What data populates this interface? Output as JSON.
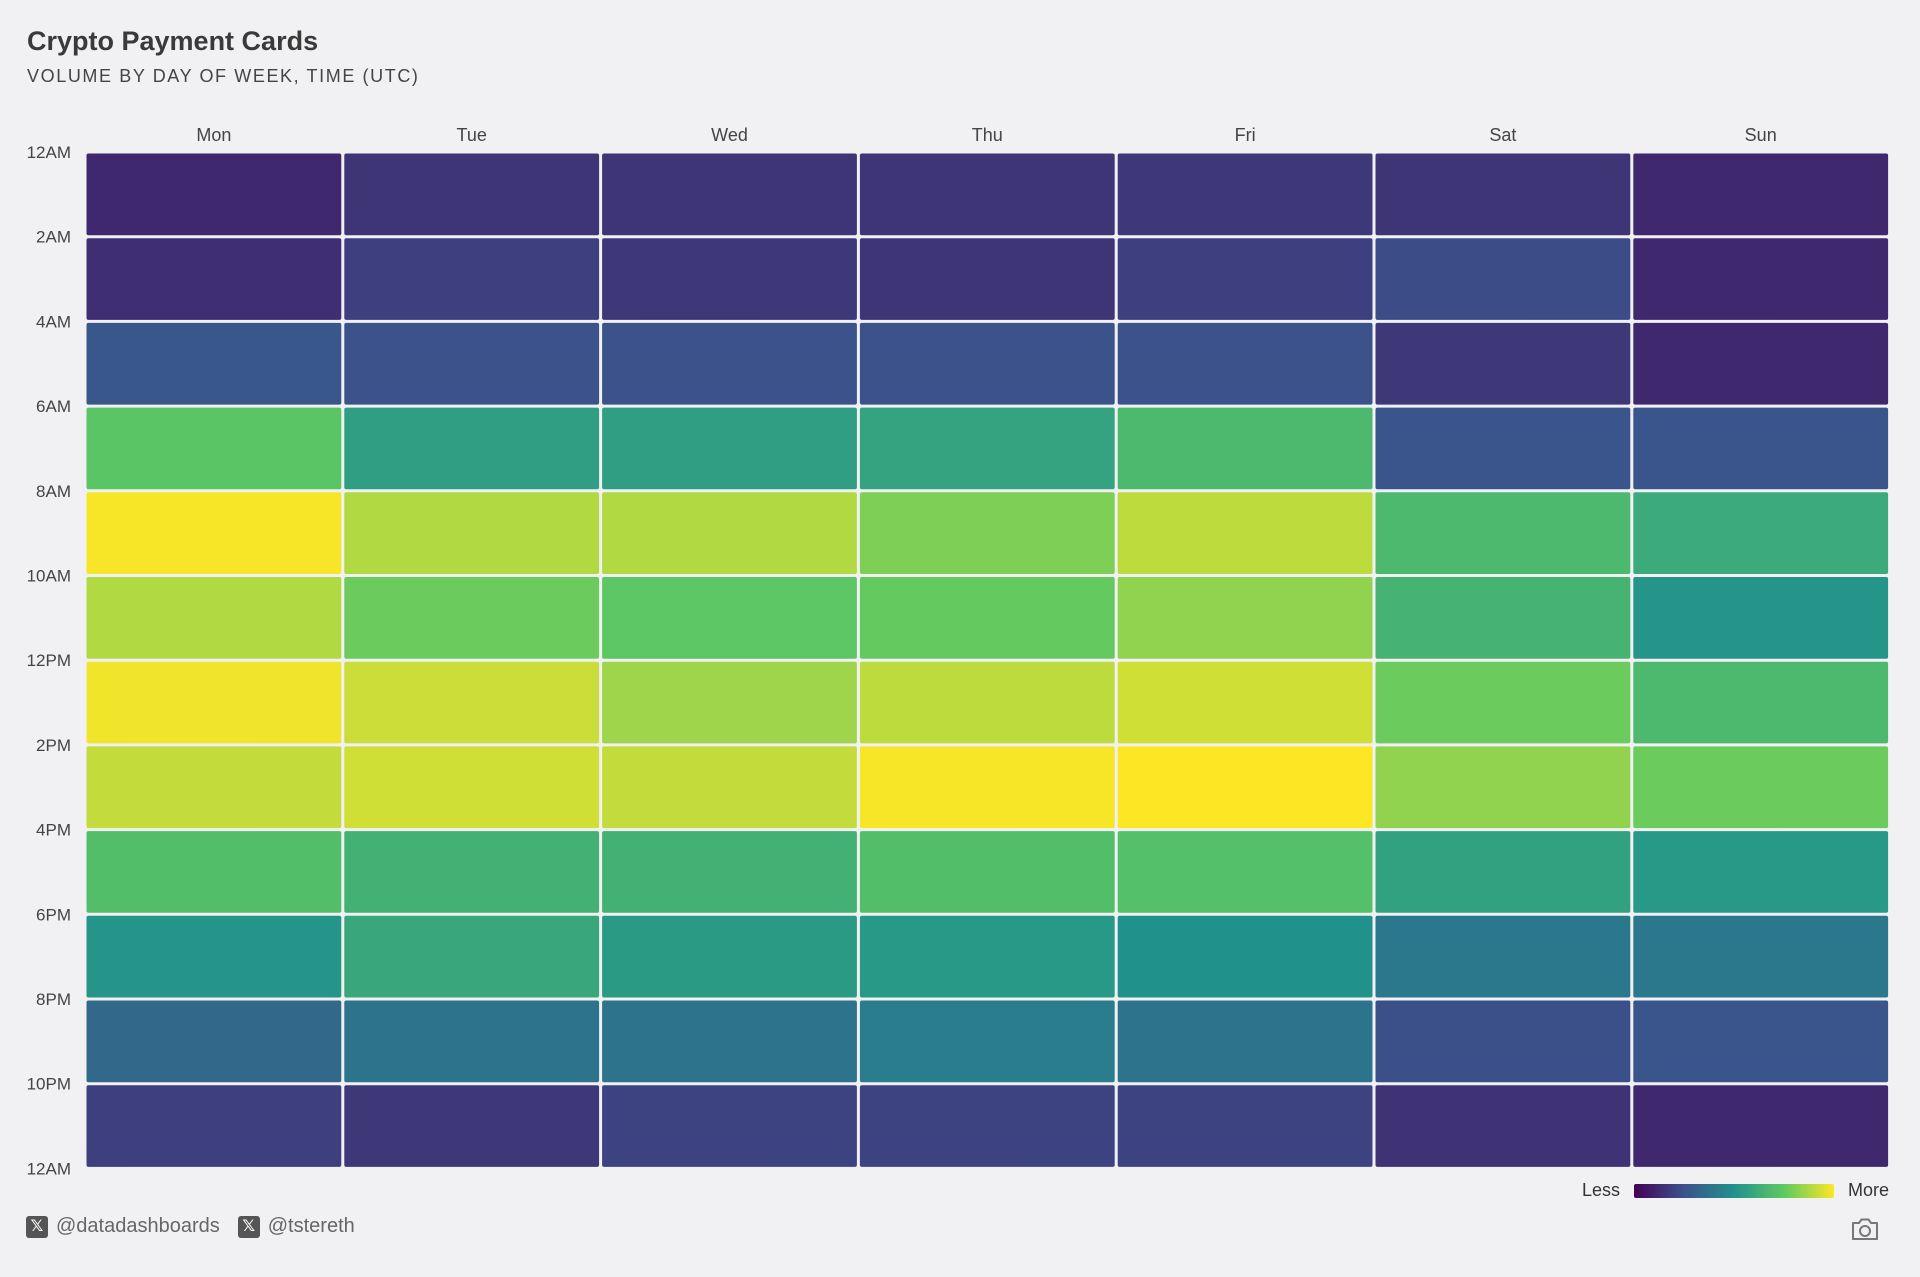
{
  "header": {
    "title": "Crypto Payment Cards",
    "subtitle": "VOLUME BY DAY OF WEEK, TIME (UTC)"
  },
  "legend": {
    "less": "Less",
    "more": "More",
    "colors": [
      "#440154",
      "#3b528b",
      "#21918c",
      "#5ec962",
      "#fde725"
    ]
  },
  "footer": {
    "handles": [
      {
        "icon": "x-logo-icon",
        "label": "@datadashboards"
      },
      {
        "icon": "x-logo-icon",
        "label": "@tstereth"
      }
    ],
    "camera_icon": "camera-icon"
  },
  "chart_data": {
    "type": "heatmap",
    "title": "Crypto Payment Cards",
    "subtitle": "VOLUME BY DAY OF WEEK, TIME (UTC)",
    "x_categories": [
      "Mon",
      "Tue",
      "Wed",
      "Thu",
      "Fri",
      "Sat",
      "Sun"
    ],
    "y_ticks": [
      "12AM",
      "2AM",
      "4AM",
      "6AM",
      "8AM",
      "10AM",
      "12PM",
      "2PM",
      "4PM",
      "6PM",
      "8PM",
      "10PM",
      "12AM"
    ],
    "row_bins": [
      "12AM-2AM",
      "2AM-4AM",
      "4AM-6AM",
      "6AM-8AM",
      "8AM-10AM",
      "10AM-12PM",
      "12PM-2PM",
      "2PM-4PM",
      "4PM-6PM",
      "6PM-8PM",
      "8PM-10PM",
      "10PM-12AM"
    ],
    "scale": "relative intensity 0-1 (Less to More)",
    "colorscale": "viridis",
    "values": [
      [
        0.12,
        0.16,
        0.16,
        0.16,
        0.17,
        0.16,
        0.12
      ],
      [
        0.14,
        0.19,
        0.17,
        0.16,
        0.19,
        0.23,
        0.12
      ],
      [
        0.27,
        0.25,
        0.25,
        0.25,
        0.25,
        0.17,
        0.12
      ],
      [
        0.73,
        0.56,
        0.56,
        0.58,
        0.68,
        0.26,
        0.26
      ],
      [
        0.99,
        0.88,
        0.88,
        0.8,
        0.9,
        0.68,
        0.61
      ],
      [
        0.88,
        0.77,
        0.74,
        0.76,
        0.83,
        0.65,
        0.52
      ],
      [
        0.98,
        0.92,
        0.85,
        0.9,
        0.93,
        0.77,
        0.68
      ],
      [
        0.91,
        0.93,
        0.91,
        0.99,
        1.0,
        0.83,
        0.77
      ],
      [
        0.7,
        0.64,
        0.64,
        0.7,
        0.71,
        0.57,
        0.53
      ],
      [
        0.52,
        0.6,
        0.54,
        0.53,
        0.5,
        0.4,
        0.4
      ],
      [
        0.34,
        0.38,
        0.38,
        0.42,
        0.38,
        0.24,
        0.26
      ],
      [
        0.19,
        0.17,
        0.2,
        0.2,
        0.2,
        0.15,
        0.12
      ]
    ]
  }
}
